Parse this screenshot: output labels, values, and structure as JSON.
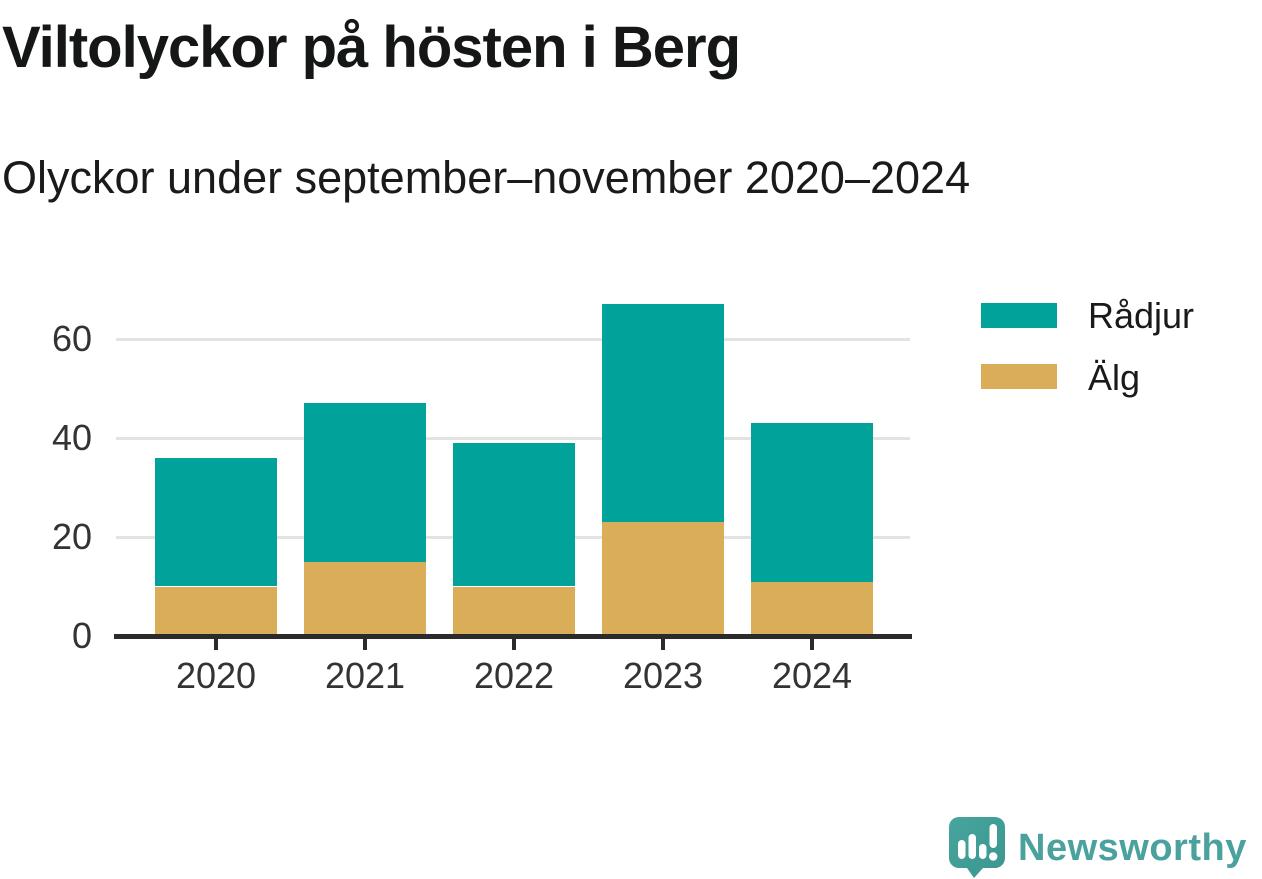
{
  "header": {
    "title": "Viltolyckor på hösten i Berg",
    "subtitle": "Olyckor under september–november 2020–2024"
  },
  "chart_data": {
    "type": "bar",
    "stacked": true,
    "title": "Viltolyckor på hösten i Berg",
    "subtitle": "Olyckor under september–november 2020–2024",
    "categories": [
      "2020",
      "2021",
      "2022",
      "2023",
      "2024"
    ],
    "series": [
      {
        "name": "Rådjur",
        "color": "#00a29a",
        "values": [
          26,
          32,
          29,
          44,
          32
        ]
      },
      {
        "name": "Älg",
        "color": "#daad58",
        "values": [
          10,
          15,
          10,
          23,
          11
        ]
      }
    ],
    "stack_totals": [
      36,
      47,
      39,
      67,
      43
    ],
    "xlabel": "",
    "ylabel": "",
    "yticks": [
      0,
      20,
      40,
      60
    ],
    "ylim": [
      0,
      70
    ],
    "grid": true,
    "legend_position": "top-right"
  },
  "legend": {
    "items": [
      {
        "label": "Rådjur",
        "color": "#00a29a"
      },
      {
        "label": "Älg",
        "color": "#daad58"
      }
    ]
  },
  "footer": {
    "brand": "Newsworthy",
    "brand_text_color": "#4aa19d",
    "logo_bubble_color": "#3f9d96"
  },
  "colors": {
    "background": "#ffffff",
    "text_dark": "#141715",
    "axis": "#2b2b2b",
    "gridline": "#e3e3e3",
    "tick_label": "#333333"
  }
}
